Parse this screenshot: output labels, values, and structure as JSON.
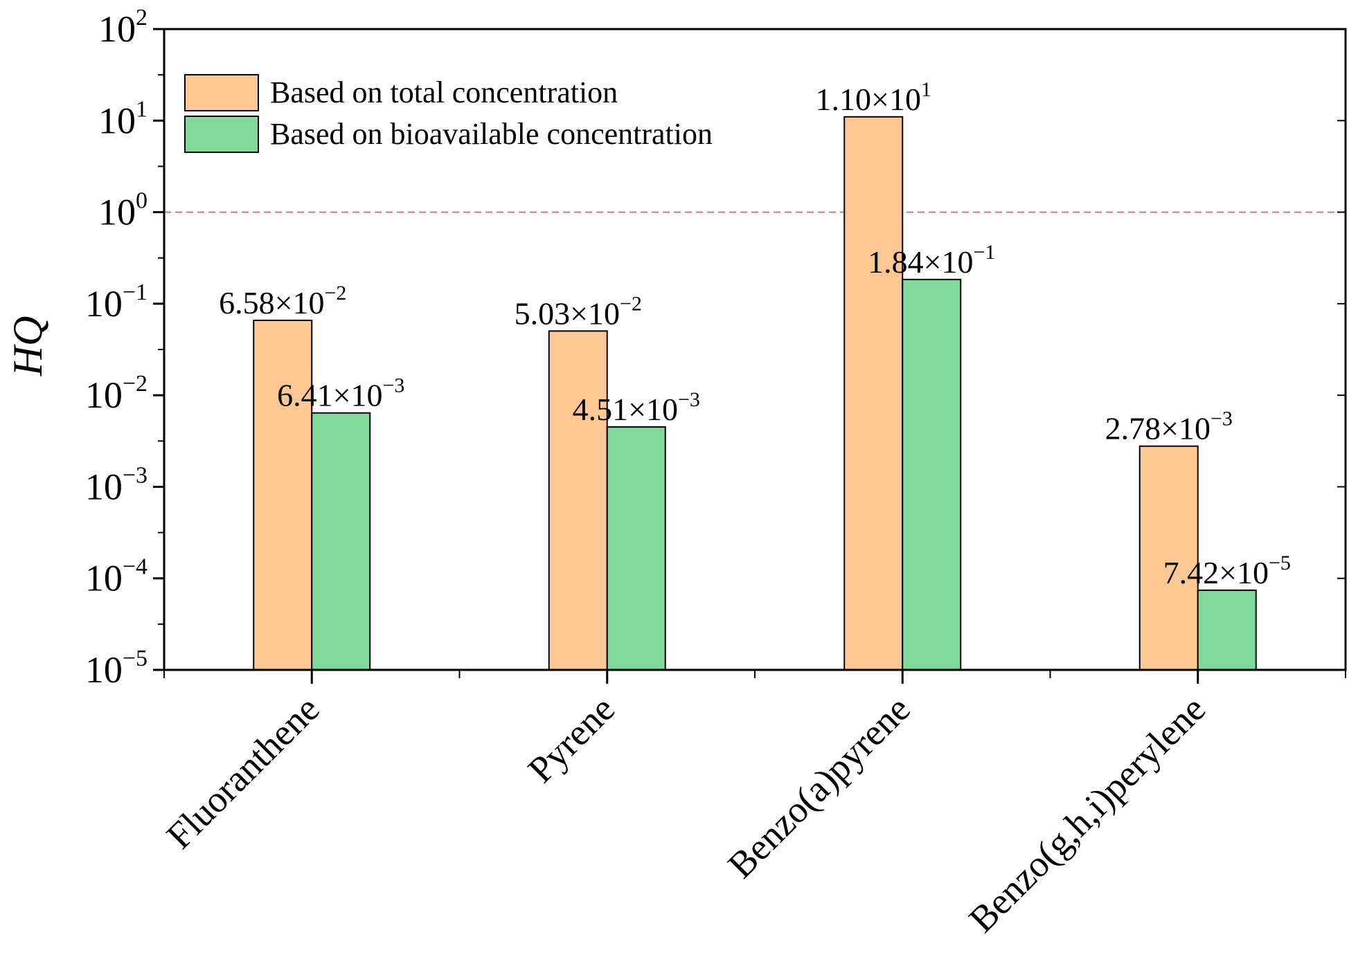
{
  "chart_data": {
    "type": "bar",
    "scale": "log",
    "ylabel": "HQ",
    "xlabel": "",
    "ylim": [
      1e-05,
      100
    ],
    "yticks": [
      {
        "base": "10",
        "exp": "2",
        "value": 100
      },
      {
        "base": "10",
        "exp": "1",
        "value": 10
      },
      {
        "base": "10",
        "exp": "0",
        "value": 1
      },
      {
        "base": "10",
        "exp": "−1",
        "value": 0.1
      },
      {
        "base": "10",
        "exp": "−2",
        "value": 0.01
      },
      {
        "base": "10",
        "exp": "−3",
        "value": 0.001
      },
      {
        "base": "10",
        "exp": "−4",
        "value": 0.0001
      },
      {
        "base": "10",
        "exp": "−5",
        "value": 1e-05
      }
    ],
    "categories": [
      "Fluoranthene",
      "Pyrene",
      "Benzo(a)pyrene",
      "Benzo(g,h,i)perylene"
    ],
    "reference_line": {
      "value": 1,
      "color": "#f06a6a",
      "style": "dashed"
    },
    "series": [
      {
        "name": "Based on total concentration",
        "color": "#fdc894",
        "values": [
          0.0658,
          0.0503,
          11.0,
          0.00278
        ],
        "labels": [
          {
            "mant": "6.58×10",
            "exp": "−2"
          },
          {
            "mant": "5.03×10",
            "exp": "−2"
          },
          {
            "mant": "1.10×10",
            "exp": "1"
          },
          {
            "mant": "2.78×10",
            "exp": "−3"
          }
        ]
      },
      {
        "name": "Based on bioavailable concentration",
        "color": "#80d89b",
        "values": [
          0.00641,
          0.00451,
          0.184,
          7.42e-05
        ],
        "labels": [
          {
            "mant": "6.41×10",
            "exp": "−3"
          },
          {
            "mant": "4.51×10",
            "exp": "−3"
          },
          {
            "mant": "1.84×10",
            "exp": "−1"
          },
          {
            "mant": "7.42×10",
            "exp": "−5"
          }
        ]
      }
    ],
    "legend": {
      "position": "top-left"
    }
  }
}
